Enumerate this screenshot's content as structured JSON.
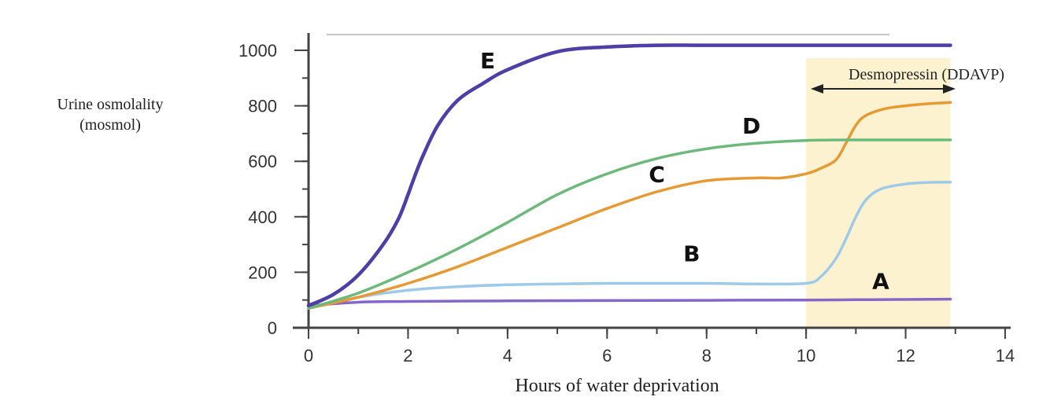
{
  "chart_data": {
    "type": "line",
    "title": "",
    "xlabel": "Hours of water deprivation",
    "ylabel": [
      "Urine osmolality",
      "(mosmol)"
    ],
    "xlim": [
      0,
      14
    ],
    "ylim": [
      0,
      1000
    ],
    "xticks": [
      0,
      2,
      4,
      6,
      8,
      10,
      12,
      14
    ],
    "yticks": [
      0,
      200,
      400,
      600,
      800,
      1000
    ],
    "grid": false,
    "shaded_region": {
      "x_start": 10,
      "x_end": 12.9,
      "label": "Desmopressin (DDAVP)",
      "color": "#fdf2d0"
    },
    "series": [
      {
        "name": "A",
        "label_text": "A",
        "label_at": [
          11.5,
          140
        ],
        "color": "#8467c8",
        "x": [
          0,
          1,
          2,
          4,
          6,
          8,
          10,
          11,
          12,
          12.9
        ],
        "y": [
          80,
          92,
          95,
          97,
          98,
          99,
          100,
          101,
          102,
          103
        ]
      },
      {
        "name": "B",
        "label_text": "B",
        "label_at": [
          7.7,
          240
        ],
        "color": "#9ec9e8",
        "x": [
          0,
          1,
          2,
          3,
          4,
          5,
          6,
          7,
          8,
          9,
          10,
          10.3,
          10.6,
          10.8,
          11,
          11.2,
          11.5,
          12,
          12.5,
          12.9
        ],
        "y": [
          70,
          110,
          135,
          148,
          155,
          158,
          160,
          160,
          160,
          158,
          160,
          185,
          250,
          320,
          400,
          460,
          500,
          518,
          524,
          525
        ]
      },
      {
        "name": "C",
        "label_text": "C",
        "label_at": [
          7,
          525
        ],
        "color": "#e59a36",
        "x": [
          0,
          1,
          2,
          3,
          4,
          5,
          6,
          7,
          8,
          9,
          9.5,
          10,
          10.3,
          10.6,
          10.8,
          11,
          11.2,
          11.6,
          12,
          12.5,
          12.9
        ],
        "y": [
          70,
          110,
          160,
          220,
          290,
          360,
          430,
          490,
          530,
          540,
          540,
          555,
          575,
          605,
          665,
          730,
          765,
          790,
          800,
          808,
          812
        ]
      },
      {
        "name": "D",
        "label_text": "D",
        "label_at": [
          8.9,
          700
        ],
        "color": "#6db97c",
        "x": [
          0,
          1,
          2,
          3,
          4,
          5,
          6,
          7,
          8,
          9,
          10,
          11,
          12,
          12.9
        ],
        "y": [
          70,
          125,
          200,
          285,
          380,
          480,
          555,
          610,
          645,
          665,
          675,
          677,
          677,
          677
        ]
      },
      {
        "name": "E",
        "label_text": "E",
        "label_at": [
          3.6,
          935
        ],
        "color": "#4f3ea6",
        "x": [
          0,
          0.5,
          1,
          1.5,
          1.8,
          2,
          2.1,
          2.3,
          2.6,
          3,
          3.5,
          4,
          5,
          6,
          7,
          8,
          10,
          12,
          12.9
        ],
        "y": [
          80,
          120,
          190,
          300,
          390,
          480,
          530,
          620,
          730,
          820,
          880,
          930,
          995,
          1012,
          1018,
          1018,
          1018,
          1018,
          1018
        ]
      }
    ]
  }
}
